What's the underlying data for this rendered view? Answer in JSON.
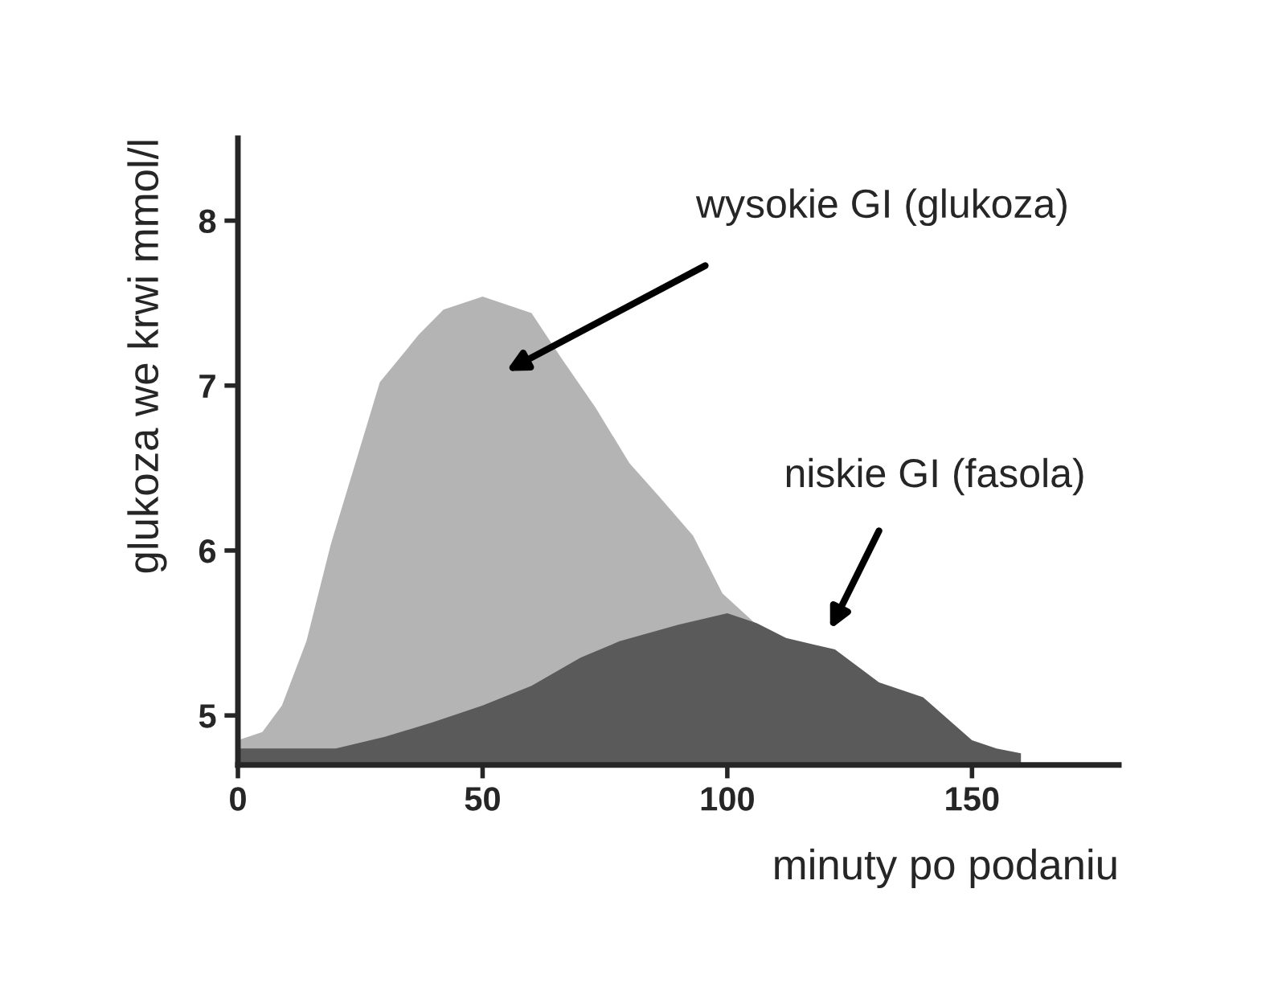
{
  "chart_data": {
    "type": "area",
    "xlabel": "minuty po podaniu",
    "ylabel": "glukoza we krwi mmol/l",
    "xlim": [
      0,
      180
    ],
    "ylim": [
      4.7,
      8.5
    ],
    "xticks": [
      0,
      50,
      100,
      150
    ],
    "yticks": [
      5,
      6,
      7,
      8
    ],
    "grid": false,
    "series": [
      {
        "color": "#b4b4b4",
        "x": [
          0,
          5,
          9,
          14,
          19,
          24,
          29,
          37,
          42,
          50,
          60,
          66,
          73,
          80,
          86,
          93,
          99,
          106
        ],
        "values": [
          4.85,
          4.9,
          5.06,
          5.45,
          6.04,
          6.53,
          7.02,
          7.31,
          7.46,
          7.54,
          7.44,
          7.17,
          6.87,
          6.53,
          6.33,
          6.09,
          5.74,
          5.55
        ]
      },
      {
        "color": "#5a5a5a",
        "x": [
          0,
          20,
          30,
          40,
          50,
          60,
          70,
          78,
          90,
          100,
          106,
          112,
          122,
          131,
          140,
          150,
          155,
          160
        ],
        "values": [
          4.8,
          4.8,
          4.87,
          4.96,
          5.06,
          5.18,
          5.35,
          5.45,
          5.55,
          5.62,
          5.56,
          5.47,
          5.4,
          5.2,
          5.11,
          4.85,
          4.8,
          4.77
        ]
      }
    ],
    "annotations": [
      "wysokie GI (glukoza)",
      "niskie GI (fasola)"
    ]
  }
}
